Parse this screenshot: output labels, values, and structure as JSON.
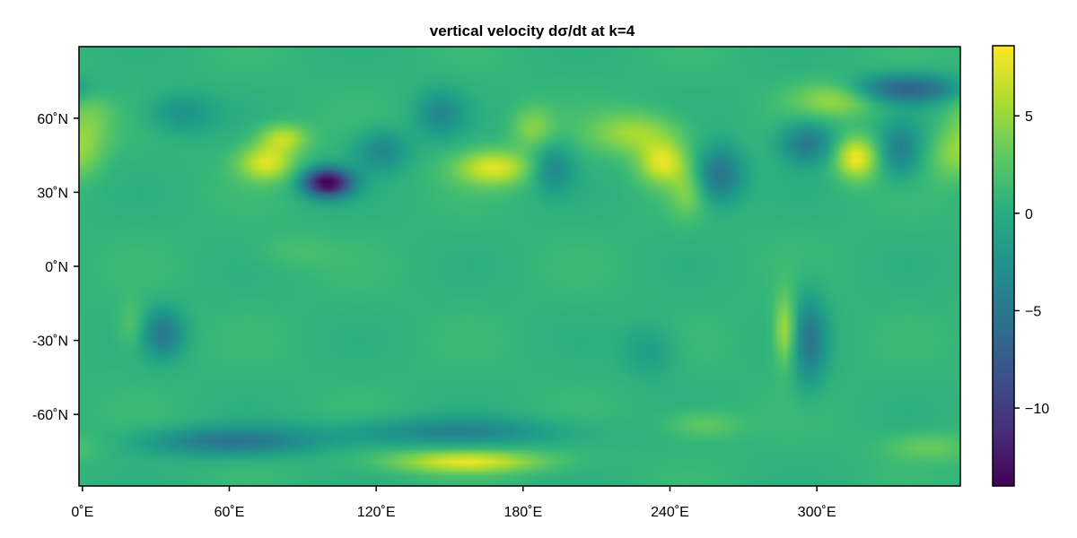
{
  "chart_data": {
    "type": "heatmap",
    "title": "vertical velocity dσ/dt at k=4",
    "xlabel": "",
    "ylabel": "",
    "x_ticks": [
      {
        "value": 0,
        "label": "0˚E"
      },
      {
        "value": 60,
        "label": "60˚E"
      },
      {
        "value": 120,
        "label": "120˚E"
      },
      {
        "value": 180,
        "label": "180˚E"
      },
      {
        "value": 240,
        "label": "240˚E"
      },
      {
        "value": 300,
        "label": "300˚E"
      }
    ],
    "y_ticks": [
      {
        "value": 60,
        "label": "60˚N"
      },
      {
        "value": 30,
        "label": "30˚N"
      },
      {
        "value": 0,
        "label": "0˚N"
      },
      {
        "value": -30,
        "label": "-30˚N"
      },
      {
        "value": -60,
        "label": "-60˚N"
      }
    ],
    "xlim": [
      -1.4,
      358.6
    ],
    "ylim": [
      -89,
      89
    ],
    "colorbar": {
      "range": [
        -14,
        8.6
      ],
      "colormap": "viridis",
      "ticks": [
        {
          "value": 5,
          "label": "5"
        },
        {
          "value": 0,
          "label": "0"
        },
        {
          "value": -5,
          "label": "−5"
        },
        {
          "value": -10,
          "label": "−10"
        }
      ]
    },
    "background_value": 0.8,
    "features": [
      {
        "lon": 75,
        "lat": 42,
        "dlon": 8,
        "dlat": 5,
        "value": 7.5
      },
      {
        "lon": 82,
        "lat": 52,
        "dlon": 7,
        "dlat": 4,
        "value": 6.5
      },
      {
        "lon": 100,
        "lat": 34,
        "dlon": 7,
        "dlat": 4,
        "value": -14.5
      },
      {
        "lon": 122,
        "lat": 47,
        "dlon": 8,
        "dlat": 6,
        "value": -3.5
      },
      {
        "lon": 168,
        "lat": 40,
        "dlon": 11,
        "dlat": 5,
        "value": 7.5
      },
      {
        "lon": 184,
        "lat": 56,
        "dlon": 6,
        "dlat": 6,
        "value": 4.5
      },
      {
        "lon": 192,
        "lat": 40,
        "dlon": 6,
        "dlat": 7,
        "value": -3.5
      },
      {
        "lon": 226,
        "lat": 54,
        "dlon": 13,
        "dlat": 6,
        "value": 5.5
      },
      {
        "lon": 237,
        "lat": 42,
        "dlon": 7,
        "dlat": 6,
        "value": 7.5
      },
      {
        "lon": 247,
        "lat": 30,
        "dlon": 5,
        "dlat": 7,
        "value": 4.0
      },
      {
        "lon": 260,
        "lat": 37,
        "dlon": 7,
        "dlat": 8,
        "value": -5.5
      },
      {
        "lon": 146,
        "lat": 62,
        "dlon": 7,
        "dlat": 7,
        "value": -3.0
      },
      {
        "lon": 296,
        "lat": 50,
        "dlon": 8,
        "dlat": 6,
        "value": -5.0
      },
      {
        "lon": 308,
        "lat": 68,
        "dlon": 12,
        "dlat": 5,
        "value": 5.5
      },
      {
        "lon": 316,
        "lat": 44,
        "dlon": 6,
        "dlat": 6,
        "value": 8.5
      },
      {
        "lon": 336,
        "lat": 72,
        "dlon": 16,
        "dlat": 4,
        "value": -7.0
      },
      {
        "lon": 334,
        "lat": 47,
        "dlon": 6,
        "dlat": 8,
        "value": -4.0
      },
      {
        "lon": 356,
        "lat": 45,
        "dlon": 7,
        "dlat": 7,
        "value": 4.0
      },
      {
        "lon": 2,
        "lat": 58,
        "dlon": 7,
        "dlat": 10,
        "value": 4.0
      },
      {
        "lon": 40,
        "lat": 62,
        "dlon": 10,
        "dlat": 6,
        "value": -2.5
      },
      {
        "lon": 33,
        "lat": -27,
        "dlon": 6,
        "dlat": 7,
        "value": -4.5
      },
      {
        "lon": 20,
        "lat": -24,
        "dlon": 4,
        "dlat": 7,
        "value": 3.0
      },
      {
        "lon": 287,
        "lat": -26,
        "dlon": 3,
        "dlat": 10,
        "value": 6.5
      },
      {
        "lon": 297,
        "lat": -30,
        "dlon": 5,
        "dlat": 13,
        "value": -4.5
      },
      {
        "lon": 157,
        "lat": -79,
        "dlon": 22,
        "dlat": 3,
        "value": 8.0
      },
      {
        "lon": 60,
        "lat": -71,
        "dlon": 25,
        "dlat": 4,
        "value": -5.0
      },
      {
        "lon": 150,
        "lat": -67,
        "dlon": 35,
        "dlat": 4,
        "value": -3.5
      },
      {
        "lon": 253,
        "lat": -64,
        "dlon": 11,
        "dlat": 4,
        "value": 3.5
      },
      {
        "lon": 346,
        "lat": -73,
        "dlon": 13,
        "dlat": 4,
        "value": 3.5
      },
      {
        "lon": 232,
        "lat": -34,
        "dlon": 8,
        "dlat": 8,
        "value": -1.5
      },
      {
        "lon": 85,
        "lat": 6,
        "dlon": 12,
        "dlat": 5,
        "value": 2.0
      }
    ]
  }
}
